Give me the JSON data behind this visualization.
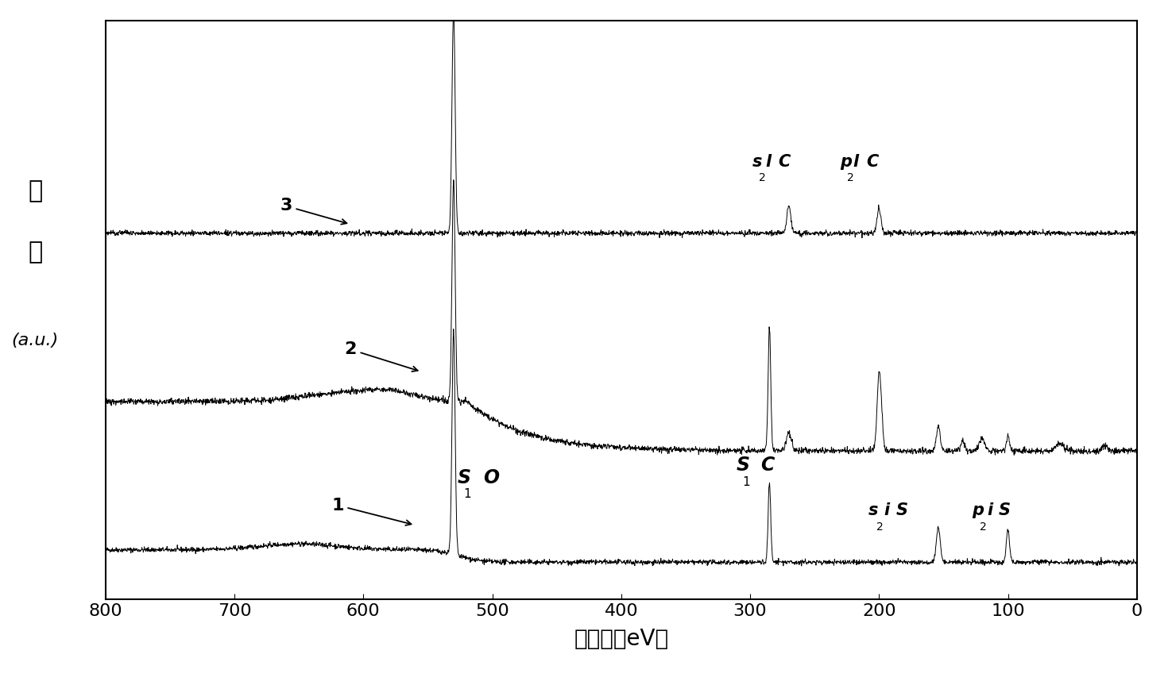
{
  "xlabel": "结合能（eV）",
  "ylabel_line1": "强",
  "ylabel_line2": "度",
  "ylabel_line3": "(a.u.)",
  "background_color": "#ffffff",
  "line_color": "#000000",
  "x_ticks": [
    800,
    700,
    600,
    500,
    400,
    300,
    200,
    100,
    0
  ],
  "curve1_base": 0.8,
  "curve2_base": 3.8,
  "curve3_base": 7.2
}
